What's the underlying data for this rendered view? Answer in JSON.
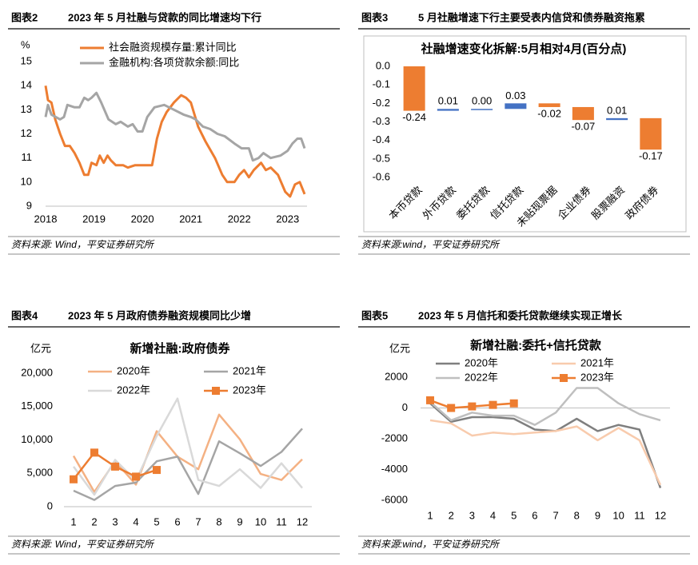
{
  "chart_data": [
    {
      "type": "line",
      "figure_label": "图表2",
      "title": "2023 年 5 月社融与贷款的同比增速均下行",
      "y_unit": "%",
      "source": "资料来源: Wind，平安证券研究所",
      "xlim": [
        2018,
        2023.4
      ],
      "xticks": [
        2018,
        2019,
        2020,
        2021,
        2022,
        2023
      ],
      "ylim": [
        9,
        15
      ],
      "yticks": [
        9,
        10,
        11,
        12,
        13,
        14,
        15
      ],
      "series": [
        {
          "name": "社会融资规模存量:累计同比",
          "color": "#ed7d31",
          "x": [
            2018.0,
            2018.05,
            2018.12,
            2018.2,
            2018.3,
            2018.4,
            2018.5,
            2018.6,
            2018.7,
            2018.8,
            2018.88,
            2018.95,
            2019.05,
            2019.12,
            2019.2,
            2019.28,
            2019.35,
            2019.45,
            2019.6,
            2019.7,
            2019.85,
            2020.0,
            2020.2,
            2020.3,
            2020.4,
            2020.5,
            2020.65,
            2020.8,
            2020.9,
            2021.0,
            2021.15,
            2021.3,
            2021.5,
            2021.65,
            2021.75,
            2021.9,
            2022.0,
            2022.1,
            2022.2,
            2022.3,
            2022.45,
            2022.55,
            2022.65,
            2022.8,
            2022.95,
            2023.05,
            2023.15,
            2023.25,
            2023.35
          ],
          "values": [
            14.0,
            13.4,
            13.3,
            12.6,
            12.0,
            11.5,
            11.5,
            11.2,
            10.8,
            10.3,
            10.3,
            10.8,
            10.7,
            11.1,
            10.8,
            11.1,
            10.9,
            10.7,
            10.7,
            10.6,
            10.7,
            10.7,
            10.7,
            11.8,
            12.5,
            12.9,
            13.3,
            13.6,
            13.5,
            13.3,
            12.3,
            11.7,
            11.0,
            10.3,
            10.0,
            10.0,
            10.3,
            10.5,
            10.2,
            10.5,
            10.8,
            10.5,
            10.6,
            10.3,
            9.6,
            9.4,
            9.9,
            10.0,
            9.5
          ]
        },
        {
          "name": "金融机构:各项贷款余额:同比",
          "color": "#a5a5a5",
          "x": [
            2018.0,
            2018.05,
            2018.12,
            2018.3,
            2018.38,
            2018.45,
            2018.6,
            2018.7,
            2018.8,
            2018.88,
            2018.95,
            2019.05,
            2019.15,
            2019.3,
            2019.45,
            2019.55,
            2019.7,
            2019.8,
            2019.9,
            2020.0,
            2020.1,
            2020.25,
            2020.45,
            2020.65,
            2020.85,
            2021.0,
            2021.1,
            2021.25,
            2021.4,
            2021.55,
            2021.7,
            2021.9,
            2022.05,
            2022.2,
            2022.28,
            2022.4,
            2022.5,
            2022.65,
            2022.85,
            2023.0,
            2023.1,
            2023.2,
            2023.28,
            2023.35
          ],
          "values": [
            12.7,
            13.2,
            12.8,
            12.6,
            12.7,
            13.2,
            13.1,
            13.1,
            13.5,
            13.4,
            13.5,
            13.7,
            13.3,
            12.6,
            12.4,
            12.5,
            12.3,
            12.4,
            12.1,
            12.1,
            12.7,
            13.1,
            13.2,
            13.0,
            12.8,
            12.7,
            12.6,
            12.3,
            12.2,
            12.0,
            11.9,
            11.6,
            11.4,
            11.4,
            10.9,
            11.0,
            11.2,
            11.0,
            11.1,
            11.3,
            11.6,
            11.8,
            11.8,
            11.4
          ]
        }
      ]
    },
    {
      "type": "waterfall",
      "figure_label": "图表3",
      "title": "5 月社融增速下行主要受表内信贷和债券融资拖累",
      "chart_title": "社融增速变化拆解:5月相对4月(百分点)",
      "source": "资料来源:wind，平安证券研究所",
      "categories": [
        "本币贷款",
        "外币贷款",
        "委托贷款",
        "信托贷款",
        "未贴现票据",
        "企业债券",
        "股票融资",
        "政府债券"
      ],
      "values": [
        -0.24,
        0.01,
        0.0,
        0.03,
        -0.02,
        -0.07,
        0.01,
        -0.17
      ],
      "value_labels": [
        "-0.24",
        "0.01",
        "0.00",
        "0.03",
        "-0.02",
        "-0.07",
        "0.01",
        "-0.17"
      ],
      "positive_color": "#4472c4",
      "negative_color": "#ed7d31",
      "ylim": [
        -0.6,
        0
      ],
      "yticks": [
        {
          "value": 0,
          "label": "0.0"
        },
        -0.1,
        -0.2,
        -0.3,
        -0.4,
        -0.5,
        -0.6
      ]
    },
    {
      "type": "line",
      "figure_label": "图表4",
      "title": "2023 年 5 月政府债券融资规模同比少增",
      "chart_title": "新增社融:政府债券",
      "y_unit": "亿元",
      "source": "资料来源: Wind，平安证券研究所",
      "categories": [
        "1",
        "2",
        "3",
        "4",
        "5",
        "6",
        "7",
        "8",
        "9",
        "10",
        "11",
        "12"
      ],
      "ylim": [
        0,
        20000
      ],
      "yticks": [
        0,
        {
          "value": 5000,
          "label": "5,000"
        },
        {
          "value": 10000,
          "label": "10,000"
        },
        {
          "value": 15000,
          "label": "15,000"
        },
        {
          "value": 20000,
          "label": "20,000"
        }
      ],
      "series": [
        {
          "name": "2020年",
          "color": "#f4b183",
          "values": [
            7600,
            2200,
            6800,
            3300,
            11300,
            7500,
            5600,
            13800,
            10100,
            4900,
            4000,
            7100
          ]
        },
        {
          "name": "2021年",
          "color": "#a5a5a5",
          "values": [
            2400,
            1000,
            3100,
            3600,
            6800,
            7500,
            1900,
            9800,
            8000,
            6100,
            8200,
            11700
          ]
        },
        {
          "name": "2022年",
          "color": "#d9d9d9",
          "values": [
            6000,
            1800,
            7000,
            3900,
            10600,
            16200,
            4000,
            3100,
            5600,
            2800,
            6500,
            2800
          ]
        },
        {
          "name": "2023年",
          "color": "#ed7d31",
          "marker": "square",
          "values": [
            4100,
            8100,
            6000,
            4500,
            5500,
            null,
            null,
            null,
            null,
            null,
            null,
            null
          ]
        }
      ]
    },
    {
      "type": "line",
      "figure_label": "图表5",
      "title": "2023 年 5 月信托和委托贷款继续实现正增长",
      "chart_title": "新增社融:委托+信托贷款",
      "y_unit": "亿元",
      "source": "资料来源:wind，平安证券研究所",
      "categories": [
        "1",
        "2",
        "3",
        "4",
        "5",
        "6",
        "7",
        "8",
        "9",
        "10",
        "11",
        "12"
      ],
      "ylim": [
        -6000,
        2000
      ],
      "yticks": [
        -6000,
        -4000,
        -2000,
        0,
        2000
      ],
      "negative_tick_color": "#ff0000",
      "series": [
        {
          "name": "2020年",
          "color": "#7f7f7f",
          "values": [
            300,
            -900,
            -600,
            -600,
            -700,
            -1400,
            -1500,
            -700,
            -1500,
            -1100,
            -1400,
            -5200
          ]
        },
        {
          "name": "2021年",
          "color": "#f8cbad",
          "values": [
            -800,
            -1000,
            -1800,
            -1600,
            -1700,
            -1600,
            -1500,
            -1200,
            -2100,
            -1300,
            -2100,
            -5000
          ]
        },
        {
          "name": "2022年",
          "color": "#bfbfbf",
          "values": [
            400,
            -800,
            -300,
            -500,
            -500,
            -1100,
            -300,
            1300,
            1300,
            300,
            -400,
            -800
          ]
        },
        {
          "name": "2023年",
          "color": "#ed7d31",
          "marker": "square",
          "values": [
            500,
            0,
            100,
            200,
            300,
            null,
            null,
            null,
            null,
            null,
            null,
            null
          ]
        }
      ]
    }
  ]
}
